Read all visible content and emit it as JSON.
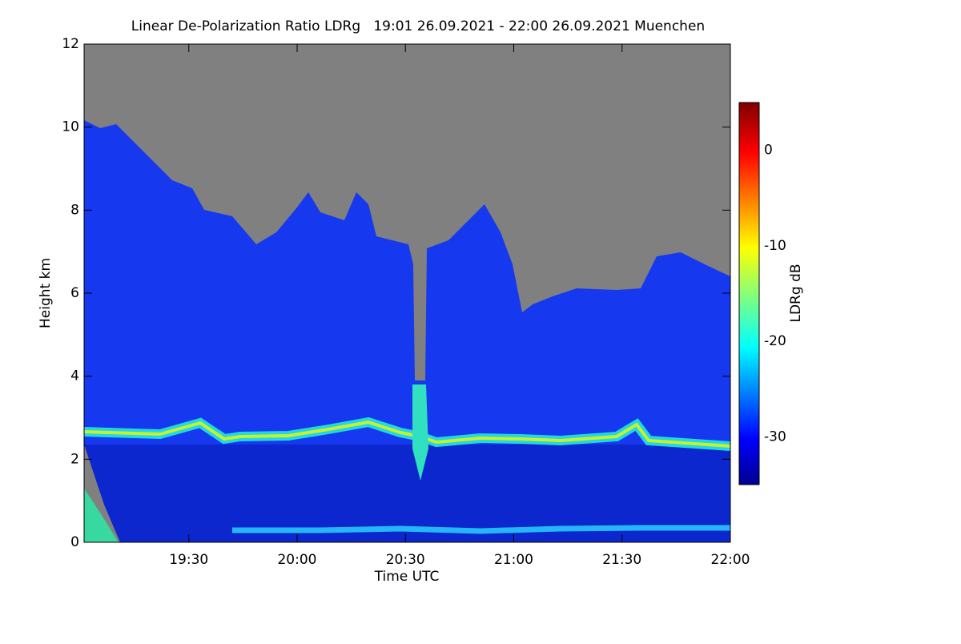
{
  "chart_data": {
    "type": "heatmap",
    "title": "Linear De-Polarization Ratio LDRg   19:01 26.09.2021 - 22:00 26.09.2021 Muenchen",
    "xlabel": "Time UTC",
    "ylabel": "Height km",
    "xlim": [
      1141,
      1320
    ],
    "xticks": [
      {
        "value": 1170,
        "label": "19:30"
      },
      {
        "value": 1200,
        "label": "20:00"
      },
      {
        "value": 1230,
        "label": "20:30"
      },
      {
        "value": 1260,
        "label": "21:00"
      },
      {
        "value": 1290,
        "label": "21:30"
      },
      {
        "value": 1320,
        "label": "22:00"
      }
    ],
    "ylim": [
      0,
      12
    ],
    "yticks": [
      0,
      2,
      4,
      6,
      8,
      10,
      12
    ],
    "colorbar": {
      "label": "LDRg dB",
      "lim": [
        -35,
        5
      ],
      "ticks": [
        -30,
        -20,
        -10,
        0
      ]
    }
  }
}
